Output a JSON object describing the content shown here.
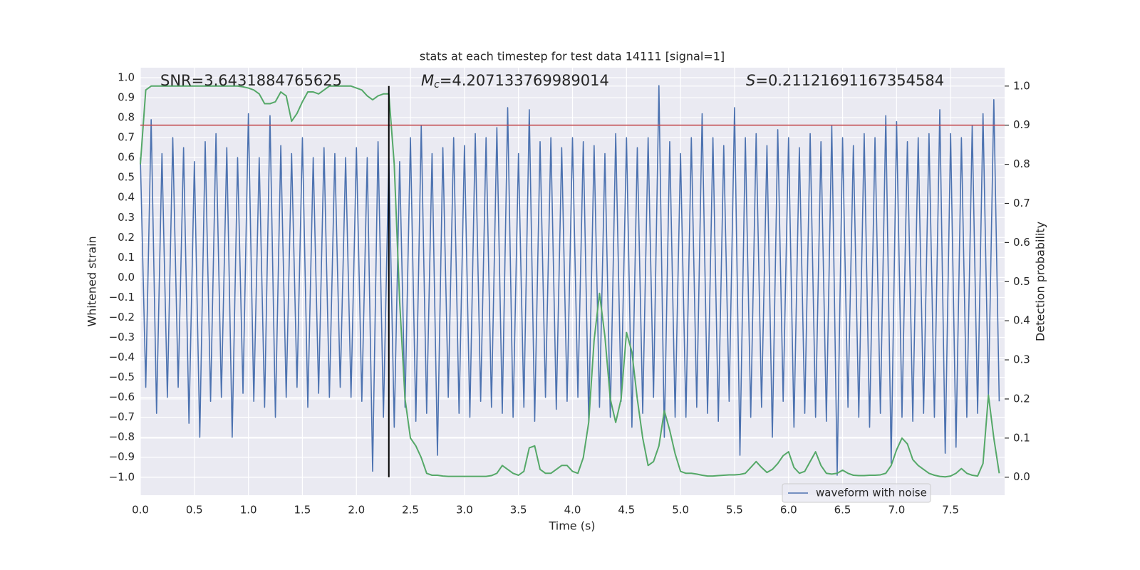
{
  "chart_data": {
    "type": "line",
    "title": "stats at each timestep for test data 14111 [signal=1]",
    "xlabel": "Time (s)",
    "ylabel": "Whitened strain",
    "y2label": "Detection probability",
    "annotations": [
      {
        "text": "SNR=3.6431884765625"
      },
      {
        "symbol": "M",
        "subscript": "c",
        "text": "=4.207133769989014"
      },
      {
        "symbol": "S",
        "text": "=0.21121691167354584"
      }
    ],
    "x": [
      0.0,
      0.05,
      0.1,
      0.15,
      0.2,
      0.25,
      0.3,
      0.35,
      0.4,
      0.45,
      0.5,
      0.55,
      0.6,
      0.65,
      0.7,
      0.75,
      0.8,
      0.85,
      0.9,
      0.95,
      1.0,
      1.05,
      1.1,
      1.15,
      1.2,
      1.25,
      1.3,
      1.35,
      1.4,
      1.45,
      1.5,
      1.55,
      1.6,
      1.65,
      1.7,
      1.75,
      1.8,
      1.85,
      1.9,
      1.95,
      2.0,
      2.05,
      2.1,
      2.15,
      2.2,
      2.25,
      2.3,
      2.35,
      2.4,
      2.45,
      2.5,
      2.55,
      2.6,
      2.65,
      2.7,
      2.75,
      2.8,
      2.85,
      2.9,
      2.95,
      3.0,
      3.05,
      3.1,
      3.15,
      3.2,
      3.25,
      3.3,
      3.35,
      3.4,
      3.45,
      3.5,
      3.55,
      3.6,
      3.65,
      3.7,
      3.75,
      3.8,
      3.85,
      3.9,
      3.95,
      4.0,
      4.05,
      4.1,
      4.15,
      4.2,
      4.25,
      4.3,
      4.35,
      4.4,
      4.45,
      4.5,
      4.55,
      4.6,
      4.65,
      4.7,
      4.75,
      4.8,
      4.85,
      4.9,
      4.95,
      5.0,
      5.05,
      5.1,
      5.15,
      5.2,
      5.25,
      5.3,
      5.35,
      5.4,
      5.45,
      5.5,
      5.55,
      5.6,
      5.65,
      5.7,
      5.75,
      5.8,
      5.85,
      5.9,
      5.95,
      6.0,
      6.05,
      6.1,
      6.15,
      6.2,
      6.25,
      6.3,
      6.35,
      6.4,
      6.45,
      6.5,
      6.55,
      6.6,
      6.65,
      6.7,
      6.75,
      6.8,
      6.85,
      6.9,
      6.95,
      7.0,
      7.05,
      7.1,
      7.15,
      7.2,
      7.25,
      7.3,
      7.35,
      7.4,
      7.45,
      7.5,
      7.55,
      7.6,
      7.65,
      7.7,
      7.75,
      7.8,
      7.85,
      7.9,
      7.95
    ],
    "series": [
      {
        "name": "waveform with noise",
        "color": "#4c72b0",
        "axis": "y",
        "values": [
          0.6,
          -0.55,
          0.79,
          -0.68,
          0.62,
          -0.6,
          0.7,
          -0.55,
          0.65,
          -0.73,
          0.58,
          -0.8,
          0.68,
          -0.62,
          0.72,
          -0.6,
          0.65,
          -0.8,
          0.6,
          -0.58,
          0.82,
          -0.62,
          0.6,
          -0.65,
          0.81,
          -0.7,
          0.66,
          -0.6,
          0.62,
          -0.55,
          0.7,
          -0.65,
          0.6,
          -0.58,
          0.65,
          -0.6,
          0.62,
          -0.55,
          0.6,
          -0.6,
          0.65,
          -0.62,
          0.6,
          -0.97,
          0.68,
          -0.7,
          0.6,
          -0.75,
          0.58,
          -0.65,
          0.7,
          -0.72,
          0.76,
          -0.68,
          0.62,
          -0.89,
          0.65,
          -0.6,
          0.7,
          -0.68,
          0.66,
          -0.7,
          0.72,
          -0.62,
          0.7,
          -0.65,
          0.75,
          -0.68,
          0.85,
          -0.7,
          0.62,
          -0.65,
          0.84,
          -0.72,
          0.68,
          -0.6,
          0.7,
          -0.66,
          0.65,
          -0.62,
          0.7,
          -0.6,
          0.68,
          -0.72,
          0.66,
          -0.65,
          0.62,
          -0.7,
          0.72,
          -0.62,
          0.7,
          -0.75,
          0.65,
          -0.68,
          0.7,
          -0.6,
          0.96,
          -0.8,
          0.68,
          -0.7,
          0.62,
          -0.7,
          0.7,
          -0.65,
          0.82,
          -0.68,
          0.7,
          -0.72,
          0.66,
          -0.62,
          0.85,
          -0.89,
          0.7,
          -0.7,
          0.72,
          -0.65,
          0.66,
          -0.8,
          0.74,
          -0.62,
          0.7,
          -0.75,
          0.65,
          -0.68,
          0.72,
          -0.7,
          0.68,
          -0.72,
          0.76,
          -0.99,
          0.7,
          -0.65,
          0.66,
          -0.7,
          0.72,
          -0.75,
          0.7,
          -0.68,
          0.81,
          -0.93,
          0.78,
          -0.7,
          0.68,
          -0.72,
          0.7,
          -0.68,
          0.72,
          -0.7,
          0.84,
          -0.88,
          0.72,
          -0.85,
          0.7,
          -0.7,
          0.76,
          -0.68,
          0.82,
          -0.6,
          0.89,
          -0.62
        ]
      },
      {
        "color": "#55a868",
        "axis": "y2",
        "values": [
          0.8,
          0.99,
          1,
          1,
          1,
          1,
          1,
          1,
          1,
          1,
          1,
          1,
          1,
          1,
          1,
          1,
          1,
          1,
          1,
          0.998,
          0.995,
          0.99,
          0.98,
          0.955,
          0.955,
          0.96,
          0.985,
          0.975,
          0.91,
          0.93,
          0.96,
          0.985,
          0.985,
          0.98,
          0.99,
          1,
          1,
          1,
          1,
          1,
          0.995,
          0.99,
          0.975,
          0.965,
          0.975,
          0.98,
          0.98,
          0.8,
          0.45,
          0.2,
          0.1,
          0.08,
          0.05,
          0.01,
          0.005,
          0.005,
          0.003,
          0.002,
          0.002,
          0.002,
          0.002,
          0.002,
          0.002,
          0.002,
          0.002,
          0.004,
          0.01,
          0.03,
          0.02,
          0.01,
          0.005,
          0.015,
          0.075,
          0.08,
          0.02,
          0.01,
          0.01,
          0.02,
          0.03,
          0.03,
          0.015,
          0.01,
          0.05,
          0.14,
          0.35,
          0.47,
          0.36,
          0.2,
          0.14,
          0.2,
          0.37,
          0.32,
          0.2,
          0.1,
          0.03,
          0.04,
          0.08,
          0.17,
          0.12,
          0.06,
          0.015,
          0.01,
          0.01,
          0.008,
          0.005,
          0.003,
          0.003,
          0.004,
          0.005,
          0.006,
          0.006,
          0.007,
          0.01,
          0.025,
          0.04,
          0.025,
          0.012,
          0.02,
          0.035,
          0.055,
          0.065,
          0.025,
          0.01,
          0.015,
          0.04,
          0.065,
          0.03,
          0.01,
          0.008,
          0.01,
          0.018,
          0.01,
          0.005,
          0.004,
          0.004,
          0.005,
          0.005,
          0.006,
          0.01,
          0.03,
          0.07,
          0.1,
          0.085,
          0.045,
          0.03,
          0.02,
          0.01,
          0.005,
          0.002,
          0.001,
          0.003,
          0.01,
          0.022,
          0.01,
          0.005,
          0.003,
          0.035,
          0.21,
          0.1,
          0.01
        ]
      }
    ],
    "reference_lines": [
      {
        "axis": "y2",
        "y": 0.9,
        "color": "#c44e52"
      },
      {
        "axis": "y2",
        "x": 2.3,
        "ymin": 0,
        "ymax": 1,
        "color": "#000000"
      }
    ],
    "xlim": [
      0,
      8
    ],
    "xticks": [
      {
        "value": 0,
        "label": "0.0"
      },
      0.5,
      {
        "value": 1,
        "label": "1.0"
      },
      1.5,
      {
        "value": 2,
        "label": "2.0"
      },
      2.5,
      {
        "value": 3,
        "label": "3.0"
      },
      3.5,
      {
        "value": 4,
        "label": "4.0"
      },
      4.5,
      {
        "value": 5,
        "label": "5.0"
      },
      5.5,
      {
        "value": 6,
        "label": "6.0"
      },
      6.5,
      {
        "value": 7,
        "label": "7.0"
      },
      7.5
    ],
    "ylim": [
      -1.09,
      1.05
    ],
    "yticks": [
      {
        "value": -1,
        "label": "−1.0"
      },
      {
        "value": -0.9,
        "label": "−0.9"
      },
      {
        "value": -0.8,
        "label": "−0.8"
      },
      {
        "value": -0.7,
        "label": "−0.7"
      },
      {
        "value": -0.6,
        "label": "−0.6"
      },
      {
        "value": -0.5,
        "label": "−0.5"
      },
      {
        "value": -0.4,
        "label": "−0.4"
      },
      {
        "value": -0.3,
        "label": "−0.3"
      },
      {
        "value": -0.2,
        "label": "−0.2"
      },
      {
        "value": -0.1,
        "label": "−0.1"
      },
      {
        "value": 0,
        "label": "0.0"
      },
      0.1,
      0.2,
      0.3,
      0.4,
      0.5,
      0.6,
      0.7,
      0.8,
      0.9,
      {
        "value": 1,
        "label": "1.0"
      }
    ],
    "y2lim": [
      -0.046,
      1.047
    ],
    "y2ticks": [
      {
        "value": 0,
        "label": "0.0"
      },
      0.1,
      0.2,
      0.3,
      0.4,
      0.5,
      0.6,
      0.7,
      0.8,
      0.9,
      {
        "value": 1,
        "label": "1.0"
      }
    ],
    "grid": true,
    "legend": "lower right"
  }
}
